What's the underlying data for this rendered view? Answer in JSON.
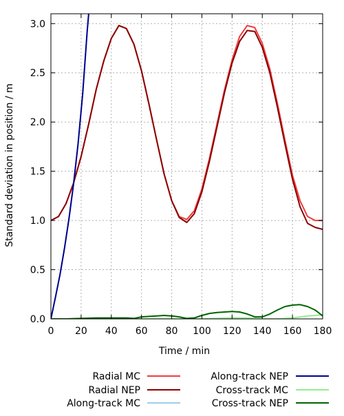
{
  "chart_data": {
    "type": "line",
    "xlabel": "Time / min",
    "ylabel": "Standard deviation in position / m",
    "xlim": [
      0,
      180
    ],
    "ylim": [
      0,
      3.1
    ],
    "xticks": [
      0,
      20,
      40,
      60,
      80,
      100,
      120,
      140,
      160,
      180
    ],
    "yticks": [
      0.0,
      0.5,
      1.0,
      1.5,
      2.0,
      2.5,
      3.0
    ],
    "ytick_labels": [
      "0.0",
      "0.5",
      "1.0",
      "1.5",
      "2.0",
      "2.5",
      "3.0"
    ],
    "grid": true,
    "legend_position": "bottom",
    "series": [
      {
        "name": "Radial MC",
        "color": "#ee3b3b",
        "x": [
          0,
          5,
          10,
          15,
          20,
          25,
          30,
          35,
          40,
          45,
          50,
          55,
          60,
          65,
          70,
          75,
          80,
          85,
          90,
          95,
          100,
          105,
          110,
          115,
          120,
          125,
          130,
          135,
          140,
          145,
          150,
          155,
          160,
          165,
          170,
          175,
          180
        ],
        "y": [
          1.0,
          1.04,
          1.17,
          1.38,
          1.65,
          1.98,
          2.33,
          2.62,
          2.85,
          2.98,
          2.95,
          2.79,
          2.52,
          2.18,
          1.82,
          1.47,
          1.2,
          1.04,
          1.01,
          1.1,
          1.32,
          1.63,
          1.98,
          2.33,
          2.63,
          2.87,
          2.98,
          2.96,
          2.8,
          2.54,
          2.19,
          1.82,
          1.46,
          1.2,
          1.04,
          1.0,
          1.0
        ]
      },
      {
        "name": "Radial NEP",
        "color": "#8b0000",
        "x": [
          0,
          5,
          10,
          15,
          20,
          25,
          30,
          35,
          40,
          45,
          50,
          55,
          60,
          65,
          70,
          75,
          80,
          85,
          90,
          95,
          100,
          105,
          110,
          115,
          120,
          125,
          130,
          135,
          140,
          145,
          150,
          155,
          160,
          165,
          170,
          175,
          180
        ],
        "y": [
          1.0,
          1.04,
          1.17,
          1.38,
          1.65,
          1.98,
          2.33,
          2.62,
          2.85,
          2.98,
          2.95,
          2.79,
          2.52,
          2.18,
          1.82,
          1.47,
          1.2,
          1.03,
          0.98,
          1.07,
          1.29,
          1.6,
          1.95,
          2.3,
          2.6,
          2.82,
          2.93,
          2.92,
          2.76,
          2.5,
          2.15,
          1.78,
          1.42,
          1.14,
          0.97,
          0.93,
          0.91
        ]
      },
      {
        "name": "Along-track MC",
        "color": "#9ccfea",
        "x": [
          0,
          3,
          6,
          9,
          12,
          15,
          18,
          21,
          24,
          25
        ],
        "y": [
          0.0,
          0.22,
          0.45,
          0.72,
          1.02,
          1.37,
          1.78,
          2.28,
          2.92,
          3.1
        ]
      },
      {
        "name": "Along-track NEP",
        "color": "#00008b",
        "x": [
          0,
          3,
          6,
          9,
          12,
          15,
          18,
          21,
          24,
          25
        ],
        "y": [
          0.0,
          0.22,
          0.45,
          0.72,
          1.02,
          1.37,
          1.78,
          2.28,
          2.92,
          3.1
        ]
      },
      {
        "name": "Cross-track MC",
        "color": "#90ee90",
        "x": [
          0,
          20,
          40,
          60,
          80,
          90,
          100,
          110,
          120,
          130,
          140,
          150,
          160,
          170,
          180
        ],
        "y": [
          0.0,
          0.0,
          0.0,
          0.0,
          0.0,
          0.0,
          0.0,
          0.005,
          0.01,
          0.01,
          0.0,
          0.0,
          0.01,
          0.03,
          0.04
        ]
      },
      {
        "name": "Cross-track NEP",
        "color": "#006400",
        "x": [
          0,
          10,
          20,
          30,
          40,
          50,
          55,
          60,
          65,
          70,
          75,
          80,
          85,
          90,
          95,
          100,
          105,
          110,
          115,
          120,
          125,
          130,
          135,
          140,
          145,
          150,
          155,
          160,
          165,
          170,
          175,
          180
        ],
        "y": [
          0.0,
          0.0,
          0.005,
          0.01,
          0.01,
          0.01,
          0.005,
          0.02,
          0.025,
          0.03,
          0.035,
          0.03,
          0.02,
          0.005,
          0.01,
          0.035,
          0.055,
          0.065,
          0.07,
          0.075,
          0.07,
          0.05,
          0.02,
          0.02,
          0.05,
          0.09,
          0.125,
          0.14,
          0.145,
          0.125,
          0.09,
          0.03
        ]
      }
    ]
  }
}
